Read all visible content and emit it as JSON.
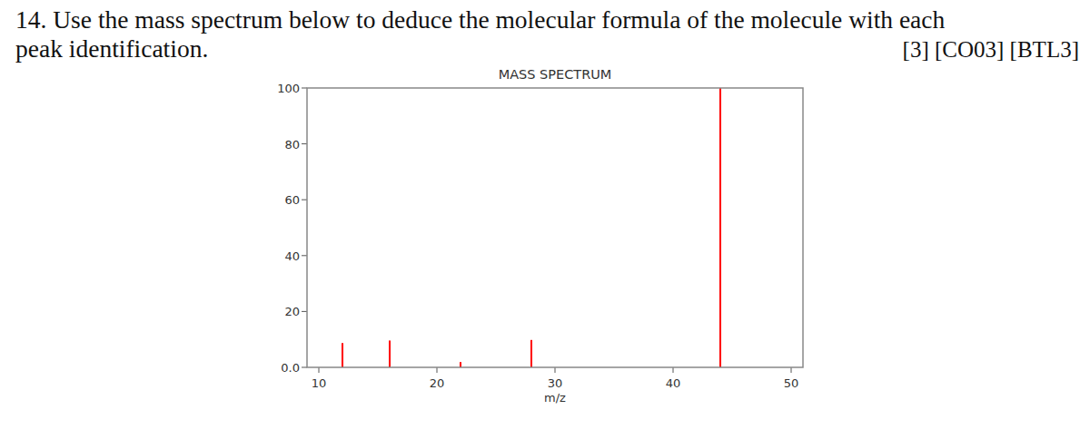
{
  "question": {
    "lines": [
      "14. Use the mass spectrum below to deduce the molecular formula of the molecule with each",
      "peak identification."
    ],
    "marks": "[3] [CO03] [BTL3]"
  },
  "chart_data": {
    "type": "bar",
    "title": "MASS SPECTRUM",
    "x_label": "m/z",
    "x": [
      12,
      16,
      22,
      28,
      44
    ],
    "values": [
      8.7,
      9.6,
      1.9,
      9.8,
      100
    ],
    "color": "#ff0000",
    "xlim": [
      9,
      51
    ],
    "xticks": [
      10,
      20,
      30,
      40,
      50
    ],
    "ylim": [
      0,
      100
    ],
    "yticks": [
      {
        "value": 0,
        "label": "0.0"
      },
      20,
      40,
      60,
      80,
      100
    ],
    "grid": false
  }
}
